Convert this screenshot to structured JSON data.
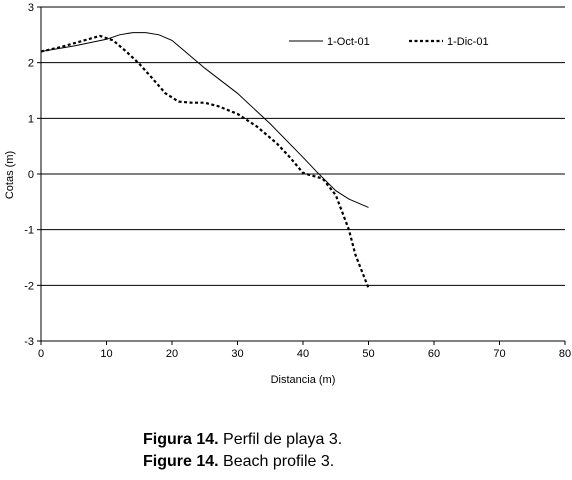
{
  "chart_data": {
    "type": "line",
    "xlabel": "Distancia (m)",
    "ylabel": "Cotas (m)",
    "xlim": [
      0,
      80
    ],
    "ylim": [
      -3,
      3
    ],
    "x_ticks": [
      0,
      10,
      20,
      30,
      40,
      50,
      60,
      70,
      80
    ],
    "y_ticks": [
      -3,
      -2,
      -1,
      0,
      1,
      2,
      3
    ],
    "grid": "horizontal lines at integer y values",
    "legend_position": "top-right",
    "series": [
      {
        "name": "1-Oct-01",
        "style": "solid",
        "x": [
          0,
          5,
          10,
          12,
          14,
          16,
          18,
          20,
          22,
          25,
          30,
          35,
          40,
          42,
          45,
          47,
          50
        ],
        "y": [
          2.2,
          2.3,
          2.42,
          2.5,
          2.54,
          2.54,
          2.5,
          2.4,
          2.2,
          1.9,
          1.45,
          0.9,
          0.3,
          0.05,
          -0.3,
          -0.45,
          -0.6
        ]
      },
      {
        "name": "1-Dic-01",
        "style": "dashed",
        "x": [
          0,
          3,
          6,
          9,
          11,
          13,
          15,
          17,
          19,
          21,
          23,
          25,
          27,
          30,
          33,
          36,
          38,
          40,
          42,
          43,
          45,
          47,
          48,
          50
        ],
        "y": [
          2.2,
          2.28,
          2.38,
          2.48,
          2.4,
          2.2,
          1.98,
          1.72,
          1.45,
          1.3,
          1.28,
          1.28,
          1.22,
          1.08,
          0.85,
          0.55,
          0.3,
          0.02,
          -0.05,
          -0.08,
          -0.38,
          -1.0,
          -1.45,
          -2.05
        ]
      }
    ]
  },
  "captions": [
    {
      "label": "Figura 14.",
      "text": " Perfil de playa 3."
    },
    {
      "label": "Figure 14.",
      "text": " Beach profile 3."
    }
  ]
}
